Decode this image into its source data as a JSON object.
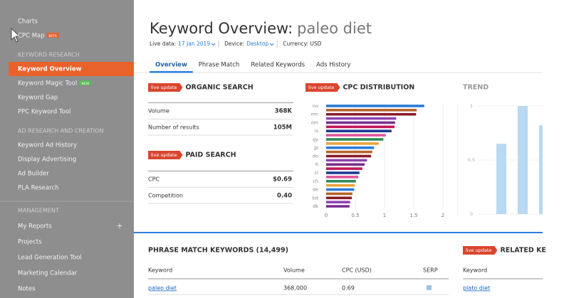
{
  "sidebar": {
    "top": [
      {
        "label": "Charts"
      },
      {
        "label": "CPC Map",
        "badge": "BETA"
      }
    ],
    "sections": [
      {
        "heading": "KEYWORD RESEARCH",
        "items": [
          {
            "label": "Keyword Overview"
          },
          {
            "label": "Keyword Magic Tool",
            "badge": "NEW"
          },
          {
            "label": "Keyword Gap"
          },
          {
            "label": "PPC Keyword Tool"
          }
        ]
      },
      {
        "heading": "AD RESEARCH AND CREATION",
        "items": [
          {
            "label": "Keyword Ad History"
          },
          {
            "label": "Display Advertising"
          },
          {
            "label": "Ad Builder"
          },
          {
            "label": "PLA Research"
          }
        ]
      },
      {
        "heading": "MANAGEMENT",
        "items": [
          {
            "label": "My Reports",
            "action": "+"
          },
          {
            "label": "Projects"
          },
          {
            "label": "Lead Generation Tool"
          },
          {
            "label": "Marketing Calendar"
          },
          {
            "label": "Notes"
          }
        ]
      }
    ]
  },
  "header": {
    "title": "Keyword Overview:",
    "keyword": "paleo diet",
    "live_label": "Live data:",
    "live_value": "17 Jan 2019",
    "device_label": "Device:",
    "device_value": "Desktop",
    "currency": "Currency: USD"
  },
  "tabs": [
    "Overview",
    "Phrase Match",
    "Related Keywords",
    "Ads History"
  ],
  "organic": {
    "badge": "live update",
    "title": "ORGANIC SEARCH",
    "rows": [
      [
        "Volume",
        "368K"
      ],
      [
        "Number of results",
        "105M"
      ]
    ]
  },
  "paid": {
    "badge": "live update",
    "title": "PAID SEARCH",
    "rows": [
      [
        "CPC",
        "$0.69"
      ],
      [
        "Competition",
        "0.40"
      ]
    ]
  },
  "cpc_distribution": {
    "type": "bar",
    "badge": "live update",
    "title": "CPC DISTRIBUTION",
    "categories": [
      "no",
      null,
      "mn",
      null,
      "om",
      null,
      "is",
      null,
      "gy",
      null,
      "jp",
      null,
      "do",
      null,
      "fi",
      null,
      "cl",
      null,
      "ch",
      null,
      "de",
      null,
      "bd",
      null,
      "dk"
    ],
    "values": [
      1.68,
      1.55,
      1.54,
      1.2,
      1.18,
      1.17,
      1.12,
      1.02,
      0.98,
      0.9,
      0.82,
      0.79,
      0.77,
      0.7,
      0.66,
      0.62,
      0.57,
      0.55,
      0.51,
      0.49,
      0.48,
      0.45,
      0.44,
      0.41,
      0.4
    ],
    "colors": [
      "#2b7bd8",
      "#b5652b",
      "#8b1a2a",
      "#8e44ad",
      "#7b2d8e",
      "#c2185b",
      "#1f3a93",
      "#e0569b",
      "#2e8b57",
      "#e8a33c"
    ],
    "xlim": [
      0,
      2
    ],
    "xticks": [
      0,
      0.5,
      1,
      1.5,
      2
    ]
  },
  "trend": {
    "type": "bar",
    "title": "TREND",
    "values": [
      0.65,
      1,
      0.82
    ],
    "color": "#b9d9f2",
    "ylim": [
      0,
      1
    ],
    "yticks": [
      0,
      0.5,
      1
    ]
  },
  "phrase_match": {
    "title": "PHRASE MATCH KEYWORDS (14,499)",
    "columns": [
      "Keyword",
      "Volume",
      "CPC (USD)",
      "SERP"
    ],
    "rows": [
      [
        "paleo diet",
        "368,000",
        "0.69"
      ]
    ]
  },
  "related": {
    "badge": "live update",
    "title": "RELATED KE",
    "columns": [
      "Keyword"
    ],
    "rows": [
      [
        "plato diet"
      ]
    ]
  }
}
